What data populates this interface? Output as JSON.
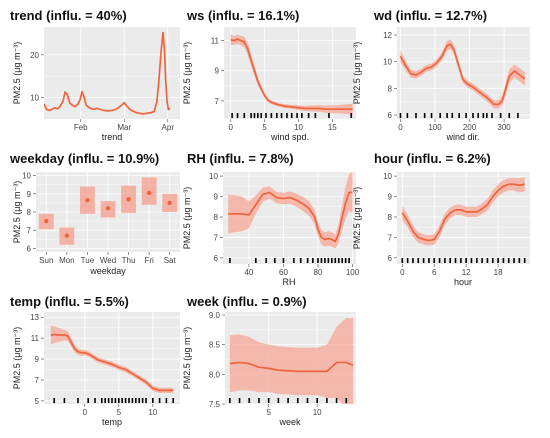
{
  "colors": {
    "line": "#f0643c",
    "band": "#f5a796",
    "point": "#f0643c",
    "panel_bg": "#ebebeb",
    "grid": "#ffffff",
    "rug": "#000000"
  },
  "ylabel": "PM2.5 (μg m⁻³)",
  "chart_data": [
    {
      "id": "trend",
      "type": "line",
      "title": "trend (influ. = 40%)",
      "xlabel": "trend",
      "xlim": [
        0,
        100
      ],
      "ylim": [
        5,
        26.5
      ],
      "yticks": [
        10,
        20
      ],
      "xticks": [
        {
          "v": 27,
          "label": "Feb"
        },
        {
          "v": 59,
          "label": "Mar"
        },
        {
          "v": 91,
          "label": "Apr"
        }
      ],
      "rug": [],
      "x": [
        0,
        2,
        4,
        6,
        8,
        10,
        12,
        14,
        15.5,
        17,
        19,
        21,
        23,
        25,
        26.5,
        28,
        29.5,
        31,
        33,
        35,
        37,
        39,
        41,
        44,
        47,
        50,
        53,
        55,
        57,
        59,
        61,
        63,
        65,
        67,
        69,
        71,
        73,
        75,
        77,
        79,
        81,
        83,
        84.5,
        86,
        87.5,
        88.5,
        89.5,
        90.5,
        91.5,
        92.5
      ],
      "y": [
        8.5,
        7.2,
        7.0,
        7.3,
        7.6,
        7.4,
        8.0,
        9.2,
        11.3,
        10.8,
        8.7,
        8.2,
        7.9,
        8.5,
        9.5,
        11.4,
        10.1,
        8.2,
        7.7,
        7.4,
        7.3,
        7.5,
        7.3,
        7.0,
        6.9,
        7.0,
        7.3,
        7.7,
        8.2,
        8.8,
        8.0,
        7.3,
        6.9,
        6.6,
        6.4,
        6.3,
        6.2,
        6.3,
        6.4,
        6.5,
        6.8,
        9.0,
        14.0,
        20.5,
        25.2,
        21.5,
        14.0,
        9.0,
        7.2,
        7.5
      ],
      "band": []
    },
    {
      "id": "ws",
      "type": "line",
      "title": "ws (influ. = 16.1%)",
      "xlabel": "wind spd.",
      "xlim": [
        -1,
        18.5
      ],
      "ylim": [
        5.8,
        11.9
      ],
      "yticks": [
        7,
        9,
        11
      ],
      "xticks": [
        {
          "v": 0,
          "label": "0"
        },
        {
          "v": 5,
          "label": "5"
        },
        {
          "v": 10,
          "label": "10"
        },
        {
          "v": 15,
          "label": "15"
        }
      ],
      "rug": [
        0.2,
        1.0,
        2.0,
        3.0,
        3.5,
        4.0,
        4.5,
        5.2,
        6.0,
        6.8,
        7.5,
        8.3,
        9.0,
        9.8,
        10.5,
        11.5,
        12.5,
        14.5,
        17.8
      ],
      "x": [
        0,
        0.5,
        1,
        1.5,
        2,
        2.5,
        3,
        3.5,
        4,
        4.5,
        5,
        5.5,
        6,
        7,
        8,
        9,
        10,
        11,
        12,
        13,
        14,
        15,
        16,
        17,
        18
      ],
      "y": [
        11.05,
        11.0,
        11.1,
        11.0,
        10.9,
        10.45,
        9.7,
        9.0,
        8.3,
        7.8,
        7.35,
        7.05,
        6.9,
        6.75,
        6.65,
        6.6,
        6.55,
        6.5,
        6.5,
        6.5,
        6.45,
        6.45,
        6.45,
        6.45,
        6.45
      ],
      "band": [
        0.35,
        0.3,
        0.3,
        0.32,
        0.35,
        0.38,
        0.38,
        0.32,
        0.25,
        0.2,
        0.16,
        0.13,
        0.12,
        0.12,
        0.13,
        0.14,
        0.15,
        0.17,
        0.2,
        0.22,
        0.24,
        0.26,
        0.28,
        0.32,
        0.35
      ]
    },
    {
      "id": "wd",
      "type": "line",
      "title": "wd (influ. = 12.7%)",
      "xlabel": "wind dir.",
      "xlim": [
        -10,
        375
      ],
      "ylim": [
        5.7,
        12.6
      ],
      "yticks": [
        6,
        8,
        10,
        12
      ],
      "xticks": [
        {
          "v": 0,
          "label": "0"
        },
        {
          "v": 100,
          "label": "100"
        },
        {
          "v": 200,
          "label": "200"
        },
        {
          "v": 300,
          "label": "300"
        }
      ],
      "rug": [
        0,
        20,
        45,
        70,
        90,
        115,
        135,
        150,
        170,
        190,
        210,
        225,
        240,
        250,
        265,
        290,
        315,
        340
      ],
      "x": [
        0,
        15,
        30,
        45,
        60,
        75,
        90,
        105,
        120,
        135,
        145,
        155,
        165,
        180,
        195,
        210,
        225,
        240,
        255,
        270,
        285,
        295,
        305,
        315,
        330,
        345,
        360
      ],
      "y": [
        10.4,
        9.7,
        9.1,
        9.0,
        9.2,
        9.5,
        9.6,
        9.9,
        10.4,
        11.2,
        11.3,
        10.9,
        10.0,
        8.7,
        8.3,
        8.1,
        7.8,
        7.5,
        7.2,
        6.8,
        6.8,
        7.1,
        8.0,
        8.9,
        9.3,
        9.0,
        8.7
      ],
      "band": [
        0.45,
        0.35,
        0.3,
        0.28,
        0.26,
        0.25,
        0.25,
        0.25,
        0.3,
        0.35,
        0.38,
        0.35,
        0.32,
        0.28,
        0.26,
        0.25,
        0.25,
        0.26,
        0.28,
        0.3,
        0.32,
        0.35,
        0.45,
        0.5,
        0.5,
        0.5,
        0.5
      ]
    },
    {
      "id": "weekday",
      "type": "scatter",
      "title": "weekday (influ. = 10.9%)",
      "xlabel": "weekday",
      "categories": [
        "Sun",
        "Mon",
        "Tue",
        "Wed",
        "Thu",
        "Fri",
        "Sat"
      ],
      "ylim": [
        5.8,
        10.2
      ],
      "yticks": [
        6,
        7,
        8,
        9,
        10
      ],
      "values": [
        7.5,
        6.7,
        8.65,
        8.2,
        8.7,
        9.05,
        8.5
      ],
      "lower": [
        7.05,
        6.2,
        7.9,
        7.7,
        7.95,
        8.4,
        8.0
      ],
      "upper": [
        7.9,
        7.15,
        9.4,
        8.6,
        9.45,
        9.9,
        9.0
      ]
    },
    {
      "id": "RH",
      "type": "line",
      "title": "RH (influ. = 7.8%)",
      "xlabel": "RH",
      "xlim": [
        25,
        102
      ],
      "ylim": [
        5.7,
        10.2
      ],
      "yticks": [
        6,
        7,
        8,
        9,
        10
      ],
      "xticks": [
        {
          "v": 40,
          "label": "40"
        },
        {
          "v": 60,
          "label": "60"
        },
        {
          "v": 80,
          "label": "80"
        },
        {
          "v": 100,
          "label": "100"
        }
      ],
      "rug": [
        29,
        44,
        50,
        55,
        60,
        66,
        70,
        74,
        77,
        80,
        82,
        84,
        86,
        88,
        90,
        92,
        94,
        96,
        98
      ],
      "x": [
        28,
        32,
        36,
        40,
        44,
        48,
        52,
        56,
        60,
        64,
        68,
        72,
        75,
        78,
        80,
        82,
        84,
        86,
        88,
        90,
        92,
        94,
        96,
        98,
        100
      ],
      "y": [
        8.15,
        8.15,
        8.15,
        8.1,
        8.6,
        9.1,
        9.2,
        8.95,
        8.9,
        8.95,
        8.8,
        8.6,
        8.4,
        8.0,
        7.4,
        7.0,
        6.9,
        6.95,
        6.9,
        6.8,
        7.2,
        8.0,
        8.7,
        9.2,
        9.2
      ],
      "band": [
        0.95,
        0.9,
        0.85,
        0.65,
        0.45,
        0.35,
        0.3,
        0.28,
        0.28,
        0.3,
        0.32,
        0.35,
        0.35,
        0.35,
        0.35,
        0.35,
        0.35,
        0.35,
        0.35,
        0.35,
        0.45,
        0.6,
        0.8,
        0.9,
        1.0
      ]
    },
    {
      "id": "hour",
      "type": "line",
      "title": "hour (influ. = 6.2%)",
      "xlabel": "hour",
      "xlim": [
        -1,
        24
      ],
      "ylim": [
        5.7,
        10.2
      ],
      "yticks": [
        6,
        7,
        8,
        9,
        10
      ],
      "xticks": [
        {
          "v": 0,
          "label": "0"
        },
        {
          "v": 6,
          "label": "6"
        },
        {
          "v": 12,
          "label": "12"
        },
        {
          "v": 18,
          "label": "18"
        }
      ],
      "rug": [
        0,
        1,
        2,
        3,
        4,
        5,
        6,
        7,
        8,
        9,
        10,
        11,
        12,
        13,
        14,
        15,
        16,
        17,
        18,
        19,
        20,
        21,
        22,
        23
      ],
      "x": [
        0,
        1,
        2,
        3,
        4,
        5,
        6,
        7,
        8,
        9,
        10,
        11,
        12,
        13,
        14,
        15,
        16,
        17,
        18,
        19,
        20,
        21,
        22,
        23
      ],
      "y": [
        8.2,
        7.8,
        7.3,
        7.0,
        6.9,
        6.85,
        6.9,
        7.3,
        7.9,
        8.2,
        8.35,
        8.35,
        8.25,
        8.25,
        8.25,
        8.4,
        8.6,
        9.0,
        9.3,
        9.5,
        9.6,
        9.6,
        9.55,
        9.6
      ],
      "band": [
        0.35,
        0.3,
        0.28,
        0.26,
        0.25,
        0.25,
        0.26,
        0.28,
        0.28,
        0.26,
        0.25,
        0.25,
        0.25,
        0.25,
        0.25,
        0.26,
        0.28,
        0.3,
        0.3,
        0.3,
        0.3,
        0.32,
        0.35,
        0.35
      ]
    },
    {
      "id": "temp",
      "type": "line",
      "title": "temp (influ. = 5.5%)",
      "xlabel": "temp",
      "xlim": [
        -6,
        14
      ],
      "ylim": [
        4.7,
        13.5
      ],
      "yticks": [
        5,
        7,
        9,
        11,
        13
      ],
      "xticks": [
        {
          "v": 0,
          "label": "0"
        },
        {
          "v": 5,
          "label": "5"
        },
        {
          "v": 10,
          "label": "10"
        }
      ],
      "rug": [
        -4.5,
        -3,
        -1,
        0.5,
        1.5,
        2.5,
        3,
        3.5,
        4,
        4.5,
        5,
        5.5,
        6,
        6.5,
        7,
        7.5,
        8,
        8.5,
        9,
        10,
        11,
        12,
        13
      ],
      "x": [
        -5,
        -4.5,
        -4,
        -3.5,
        -3,
        -2.5,
        -2,
        -1.5,
        -1,
        -0.5,
        0,
        0.5,
        1,
        1.5,
        2,
        3,
        4,
        5,
        6,
        7,
        8,
        9,
        10,
        11,
        12,
        13
      ],
      "y": [
        11.3,
        11.35,
        11.3,
        11.3,
        11.3,
        11.2,
        10.6,
        10.0,
        9.7,
        9.6,
        9.6,
        9.5,
        9.3,
        9.1,
        8.9,
        8.7,
        8.5,
        8.2,
        8.0,
        7.6,
        7.2,
        6.8,
        6.2,
        6.0,
        6.0,
        6.0
      ],
      "band": [
        0.9,
        0.8,
        0.7,
        0.6,
        0.5,
        0.45,
        0.4,
        0.35,
        0.3,
        0.28,
        0.26,
        0.25,
        0.25,
        0.25,
        0.25,
        0.25,
        0.25,
        0.25,
        0.25,
        0.25,
        0.25,
        0.25,
        0.25,
        0.25,
        0.25,
        0.25
      ]
    },
    {
      "id": "week",
      "type": "line",
      "title": "week (influ. = 0.9%)",
      "xlabel": "week",
      "xlim": [
        0.5,
        14
      ],
      "ylim": [
        7.5,
        9.05
      ],
      "yticks": [
        7.5,
        8.0,
        8.5,
        9.0
      ],
      "ytick_labels": [
        "7.5",
        "8.0",
        "8.5",
        "9.0"
      ],
      "xticks": [
        {
          "v": 5,
          "label": "5"
        },
        {
          "v": 10,
          "label": "10"
        }
      ],
      "rug": [
        1,
        2,
        3,
        4,
        5,
        6,
        7,
        8,
        9,
        10,
        11,
        12,
        13
      ],
      "x": [
        1,
        2,
        3,
        4,
        5,
        6,
        7,
        8,
        9,
        10,
        11,
        12,
        13,
        13.7
      ],
      "y": [
        8.18,
        8.2,
        8.18,
        8.12,
        8.1,
        8.07,
        8.06,
        8.05,
        8.05,
        8.05,
        8.05,
        8.2,
        8.2,
        8.15
      ],
      "band": [
        0.48,
        0.47,
        0.45,
        0.42,
        0.4,
        0.4,
        0.4,
        0.4,
        0.4,
        0.4,
        0.45,
        0.6,
        0.75,
        0.8
      ]
    }
  ]
}
